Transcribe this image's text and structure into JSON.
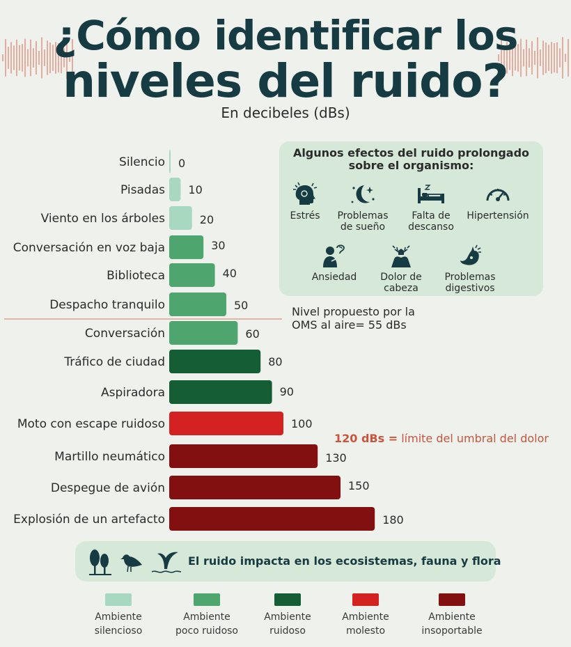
{
  "header": {
    "title_line1": "¿Cómo identificar los",
    "title_line2": "niveles del ruido?",
    "subtitle": "En decibeles (dBs)"
  },
  "colors": {
    "silencioso": "#a8d8c0",
    "poco_ruidoso": "#4ea56e",
    "ruidoso": "#155e35",
    "molesto": "#d42222",
    "insoportable": "#821010",
    "wave": "#e39a8b",
    "reference_line": "#e0a08e"
  },
  "chart_data": {
    "type": "bar",
    "orientation": "horizontal",
    "title": "¿Cómo identificar los niveles del ruido?",
    "subtitle": "En decibeles (dBs)",
    "unit": "dBs",
    "categories": [
      "Silencio",
      "Pisadas",
      "Viento en los árboles",
      "Conversación en voz baja",
      "Biblioteca",
      "Despacho tranquilo",
      "Conversación",
      "Tráfico de ciudad",
      "Aspiradora",
      "Moto con escape ruidoso",
      "Martillo neumático",
      "Despegue de avión",
      "Explosión de un artefacto"
    ],
    "values": [
      0,
      10,
      20,
      30,
      40,
      50,
      60,
      80,
      90,
      100,
      130,
      150,
      180
    ],
    "value_labels": [
      "0",
      "10",
      "20",
      "30",
      "40",
      "50",
      "60",
      "80",
      "90",
      "100",
      "130",
      "150",
      "180"
    ],
    "levels": [
      "silencioso",
      "silencioso",
      "silencioso",
      "poco_ruidoso",
      "poco_ruidoso",
      "poco_ruidoso",
      "poco_ruidoso",
      "ruidoso",
      "ruidoso",
      "molesto",
      "insoportable",
      "insoportable",
      "insoportable"
    ],
    "reference": {
      "value": 55,
      "label": "Nivel propuesto por la OMS al aire= 55 dBs"
    },
    "annotation": {
      "bold": "120 dBs =",
      "text": "límite del umbral del dolor"
    },
    "grid": false
  },
  "effects": {
    "title_line1": "Algunos efectos del ruido prolongado",
    "title_line2": "sobre el organismo:",
    "items": [
      {
        "icon": "head-stress-icon",
        "line1": "Estrés",
        "line2": ""
      },
      {
        "icon": "moon-stars-icon",
        "line1": "Problemas",
        "line2": "de sueño"
      },
      {
        "icon": "bed-icon",
        "line1": "Falta de",
        "line2": "descanso"
      },
      {
        "icon": "gauge-icon",
        "line1": "Hipertensión",
        "line2": ""
      },
      {
        "icon": "anxious-person-icon",
        "line1": "Ansiedad",
        "line2": ""
      },
      {
        "icon": "headache-icon",
        "line1": "Dolor de",
        "line2": "cabeza"
      },
      {
        "icon": "stomach-icon",
        "line1": "Problemas",
        "line2": "digestivos"
      }
    ]
  },
  "oms": {
    "line1": "Nivel propuesto por la",
    "line2": "OMS al aire= 55 dBs"
  },
  "threshold": {
    "bold": "120 dBs =",
    "text": "límite del umbral del dolor"
  },
  "ecosystem": {
    "text": "El ruido impacta en los ecosistemas, fauna y flora"
  },
  "legend": [
    {
      "key": "silencioso",
      "line1": "Ambiente",
      "line2": "silencioso"
    },
    {
      "key": "poco_ruidoso",
      "line1": "Ambiente",
      "line2": "poco ruidoso"
    },
    {
      "key": "ruidoso",
      "line1": "Ambiente",
      "line2": "ruidoso"
    },
    {
      "key": "molesto",
      "line1": "Ambiente",
      "line2": "molesto"
    },
    {
      "key": "insoportable",
      "line1": "Ambiente",
      "line2": "insoportable"
    }
  ]
}
